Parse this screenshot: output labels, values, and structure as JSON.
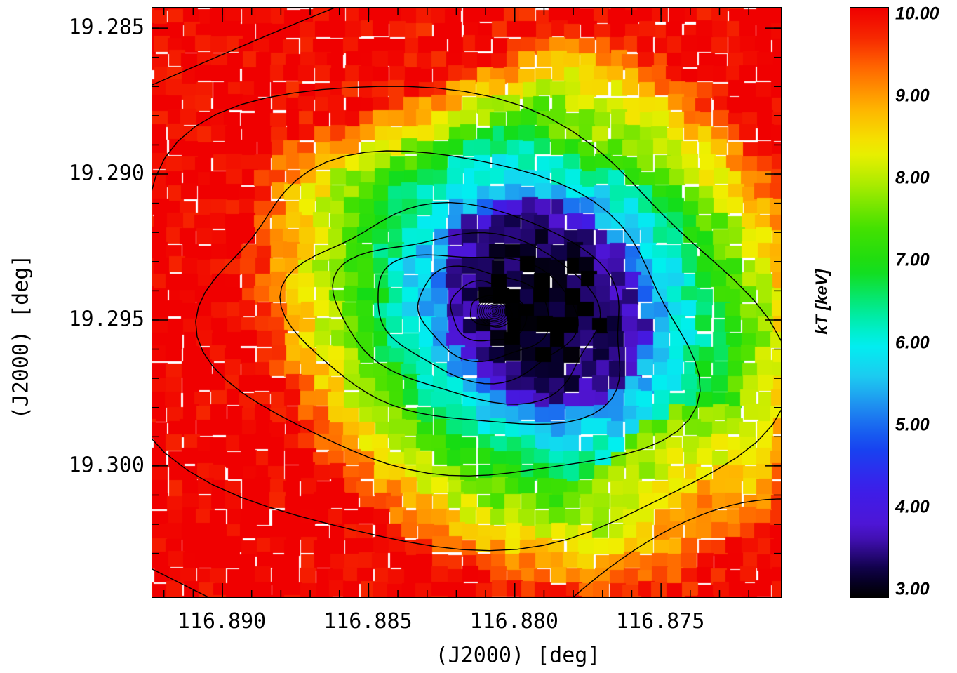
{
  "chart_data": {
    "type": "heatmap",
    "title": "",
    "xlabel": "(J2000)  [deg]",
    "ylabel": "(J2000)  [deg]",
    "x_ticks": [
      "116.890",
      "116.885",
      "116.880",
      "116.875"
    ],
    "x_tick_values": [
      116.89,
      116.885,
      116.88,
      116.875
    ],
    "xlim": [
      116.8924,
      116.8709
    ],
    "y_ticks": [
      "19.285",
      "19.290",
      "19.295",
      "19.300"
    ],
    "y_tick_values": [
      19.285,
      19.29,
      19.295,
      19.3
    ],
    "ylim": [
      19.2843,
      19.3045
    ],
    "colorbar": {
      "label": "kT [keV]",
      "ticks": [
        "10.00",
        "9.00",
        "8.00",
        "7.00",
        "6.00",
        "5.00",
        "4.00",
        "3.00"
      ],
      "tick_values": [
        10,
        9,
        8,
        7,
        6,
        5,
        4,
        3
      ],
      "range": [
        3.0,
        10.0
      ]
    },
    "temperature_core": {
      "ra": 116.879,
      "dec": 19.2945,
      "kT_min": 3.0
    },
    "surface_brightness_peak": {
      "ra": 116.8807,
      "dec": 19.2947
    },
    "contour_count": 8,
    "colormap": "rainbow (black-blue-cyan-green-yellow-red)"
  }
}
